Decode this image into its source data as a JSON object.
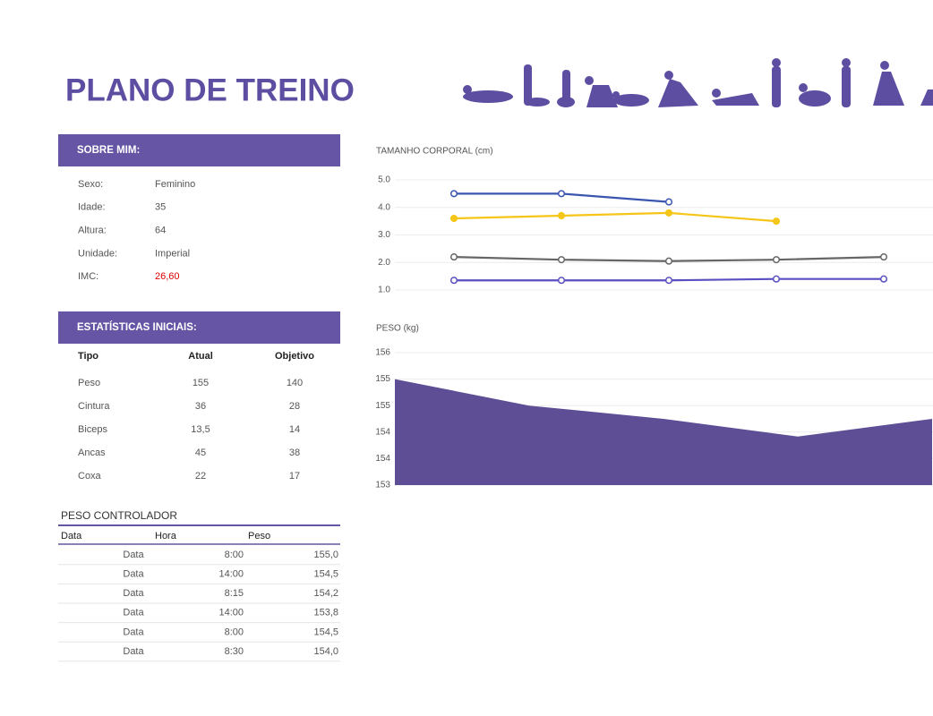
{
  "header": {
    "title": "PLANO DE TREINO"
  },
  "about": {
    "title": "SOBRE MIM:",
    "rows": [
      [
        "Sexo:",
        "Feminino"
      ],
      [
        "Idade:",
        "35"
      ],
      [
        "Altura:",
        "64"
      ],
      [
        "Unidade:",
        "Imperial"
      ],
      [
        "IMC:",
        "26,60"
      ]
    ]
  },
  "stats": {
    "title": "ESTATÍSTICAS INICIAIS:",
    "columns": [
      "Tipo",
      "Atual",
      "Objetivo"
    ],
    "rows": [
      [
        "Peso",
        "155",
        "140"
      ],
      [
        "Cintura",
        "36",
        "28"
      ],
      [
        "Biceps",
        "13,5",
        "14"
      ],
      [
        "Ancas",
        "45",
        "38"
      ],
      [
        "Coxa",
        "22",
        "17"
      ]
    ]
  },
  "tracker": {
    "title": "PESO CONTROLADOR",
    "columns": [
      "Data",
      "Hora",
      "Peso"
    ],
    "rows": [
      [
        "Data",
        "8:00",
        "155,0"
      ],
      [
        "Data",
        "14:00",
        "154,5"
      ],
      [
        "Data",
        "8:15",
        "154,2"
      ],
      [
        "Data",
        "14:00",
        "153,8"
      ],
      [
        "Data",
        "8:00",
        "154,5"
      ],
      [
        "Data",
        "8:30",
        "154,0"
      ]
    ]
  },
  "chart_data": [
    {
      "type": "line",
      "title": "TAMANHO CORPORAL (cm)",
      "categories": [
        null,
        null,
        null,
        null,
        null
      ],
      "series": [
        {
          "color": "#3a55b0",
          "values": [
            4.5,
            4.5,
            4.2,
            null,
            null
          ]
        },
        {
          "color": "#f5c518",
          "values": [
            3.6,
            3.7,
            3.8,
            3.5,
            null
          ]
        },
        {
          "color": "#666666",
          "values": [
            2.2,
            2.1,
            2.05,
            2.1,
            2.2
          ]
        },
        {
          "color": "#5a4fc0",
          "values": [
            1.35,
            1.35,
            1.35,
            1.4,
            1.4
          ]
        }
      ],
      "ylim": [
        1,
        5
      ],
      "yticks": [
        {
          "value": 5,
          "label": "5.0"
        },
        {
          "value": 4,
          "label": "4.0"
        },
        {
          "value": 3,
          "label": "3.0"
        },
        {
          "value": 2,
          "label": "2.0"
        },
        {
          "value": 1,
          "label": "1.0"
        }
      ],
      "grid": true
    },
    {
      "type": "area",
      "title": "PESO (kg)",
      "categories": [
        null,
        null,
        null,
        null,
        null
      ],
      "values": [
        155.4,
        154.8,
        154.5,
        154.1,
        154.5
      ],
      "color": "#5d4e96",
      "ylim": [
        153,
        156
      ],
      "yticks": [
        156,
        {
          "value": 155.4,
          "label": "155"
        },
        {
          "value": 154.8,
          "label": "155"
        },
        {
          "value": 154.2,
          "label": "154"
        },
        {
          "value": 153.6,
          "label": "154"
        },
        153
      ],
      "grid": true
    }
  ]
}
